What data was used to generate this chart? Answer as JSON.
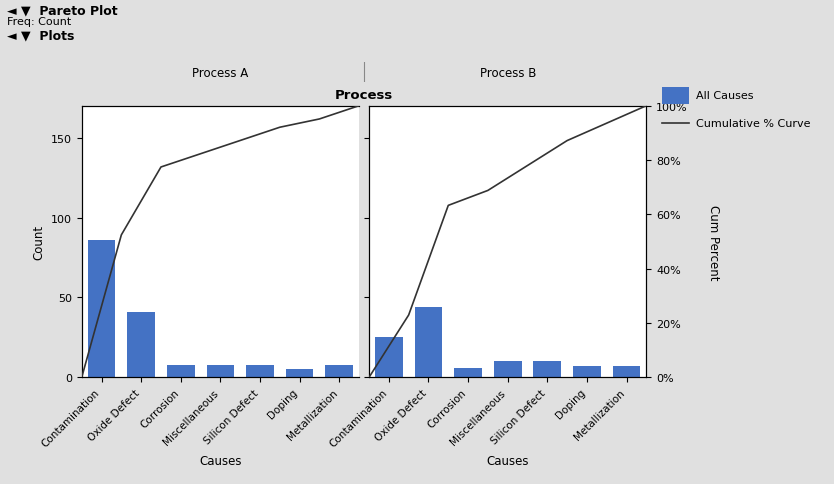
{
  "title": "Pareto Plot",
  "freq_label": "Freq: Count",
  "plots_label": "Plots",
  "panel_title": "Process",
  "panel_a_label": "Process A",
  "panel_b_label": "Process B",
  "categories": [
    "Contamination",
    "Oxide Defect",
    "Corrosion",
    "Miscellaneous",
    "Silicon Defect",
    "Doping",
    "Metallization"
  ],
  "process_a_values": [
    86,
    41,
    8,
    8,
    8,
    5,
    8
  ],
  "process_b_values": [
    25,
    44,
    6,
    10,
    10,
    7,
    7
  ],
  "bar_color": "#4472C4",
  "line_color": "#333333",
  "cum_pct_ticks": [
    0,
    20,
    40,
    60,
    80,
    100
  ],
  "count_ticks": [
    0,
    50,
    100,
    150
  ],
  "count_max": 170,
  "xlabel": "Causes",
  "ylabel_left": "Count",
  "ylabel_right": "Cum Percent",
  "legend_bar_label": "All Causes",
  "legend_line_label": "Cumulative % Curve",
  "header_bg": "#C8C8B8",
  "header_sub_bg": "#D0D0BE",
  "plot_bg": "#FFFFFF",
  "window_bg": "#E0E0E0",
  "chrome_bg": "#D4D4D4"
}
